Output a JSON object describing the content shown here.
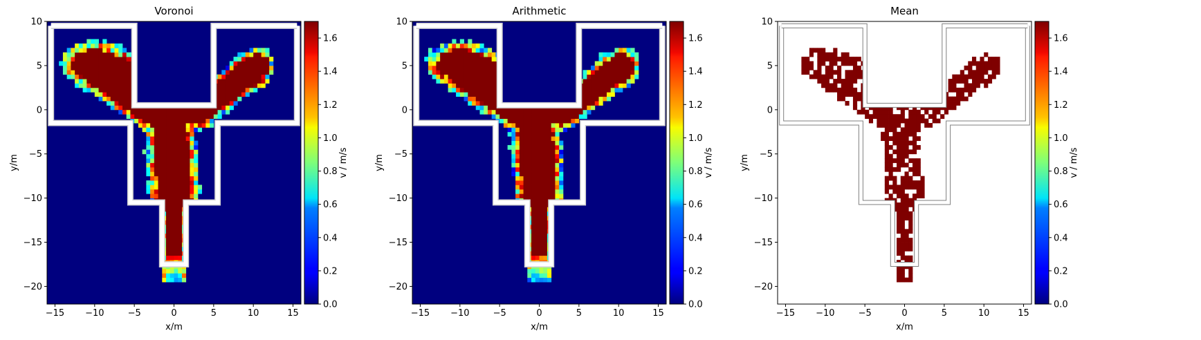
{
  "figure": {
    "colormap": "jet",
    "wall_color": "#ffffff",
    "wall_outline_color": "#7f7f7f",
    "field_low_color": "#00007f",
    "field_high_color": "#7f0000"
  },
  "chart_data": [
    {
      "type": "heatmap",
      "title": "Voronoi",
      "xlabel": "x/m",
      "ylabel": "y/m",
      "xlim": [
        -16,
        16
      ],
      "ylim": [
        -22,
        10
      ],
      "xticks": [
        -15,
        -10,
        -5,
        0,
        5,
        10,
        15
      ],
      "yticks": [
        -20,
        -15,
        -10,
        -5,
        0,
        5,
        10
      ],
      "colorbar": {
        "label": "v / m/s",
        "range": [
          0,
          1.7
        ],
        "ticks": [
          "0.0",
          "0.2",
          "0.4",
          "0.6",
          "0.8",
          "1.0",
          "1.2",
          "1.4",
          "1.6"
        ]
      },
      "background": "field",
      "values": "velocity field on a 0.5 m grid: ~1.7 m/s (max) inside the pedestrian flow, 0 outside, intermediate values at the flow edges"
    },
    {
      "type": "heatmap",
      "title": "Arithmetic",
      "xlabel": "x/m",
      "ylabel": "y/m",
      "xlim": [
        -16,
        16
      ],
      "ylim": [
        -22,
        10
      ],
      "xticks": [
        -15,
        -10,
        -5,
        0,
        5,
        10,
        15
      ],
      "yticks": [
        -20,
        -15,
        -10,
        -5,
        0,
        5,
        10
      ],
      "colorbar": {
        "label": "v / m/s",
        "range": [
          0,
          1.7
        ],
        "ticks": [
          "0.0",
          "0.2",
          "0.4",
          "0.6",
          "0.8",
          "1.0",
          "1.2",
          "1.4",
          "1.6"
        ]
      },
      "background": "field",
      "values": "velocity field on a 0.5 m grid: ~1.7 m/s (max) inside the pedestrian flow, 0 outside, intermediate values at the flow edges"
    },
    {
      "type": "heatmap",
      "title": "Mean",
      "xlabel": "x/m",
      "ylabel": "y/m",
      "xlim": [
        -16,
        16
      ],
      "ylim": [
        -22,
        10
      ],
      "xticks": [
        -15,
        -10,
        -5,
        0,
        5,
        10,
        15
      ],
      "yticks": [
        -20,
        -15,
        -10,
        -5,
        0,
        5,
        10
      ],
      "colorbar": {
        "label": "v / m/s",
        "range": [
          0,
          1.7
        ],
        "ticks": [
          "0.0",
          "0.2",
          "0.4",
          "0.6",
          "0.8",
          "1.0",
          "1.2",
          "1.4",
          "1.6"
        ]
      },
      "background": "white",
      "values": "sparse cells at the maximum ~1.7 m/s along the flow; all other cells empty"
    }
  ]
}
